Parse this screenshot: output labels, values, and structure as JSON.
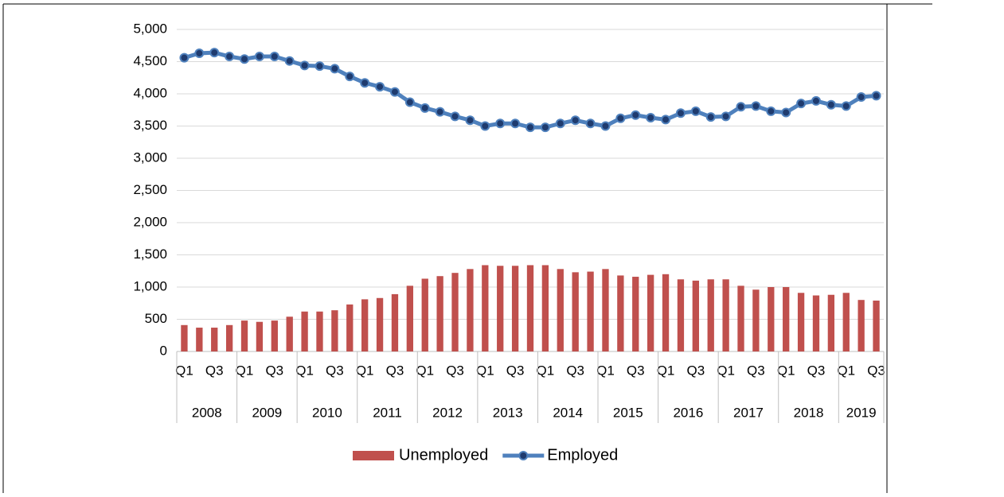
{
  "chart_data": {
    "type": "bar-line",
    "categories": [
      "Q1",
      null,
      "Q3",
      null,
      "Q1",
      null,
      "Q3",
      null,
      "Q1",
      null,
      "Q3",
      null,
      "Q1",
      null,
      "Q3",
      null,
      "Q1",
      null,
      "Q3",
      null,
      "Q1",
      null,
      "Q3",
      null,
      "Q1",
      null,
      "Q3",
      null,
      "Q1",
      null,
      "Q3",
      null,
      "Q1",
      null,
      "Q3",
      null,
      "Q1",
      null,
      "Q3",
      null,
      "Q1",
      null,
      "Q3",
      null,
      "Q1",
      null,
      "Q3"
    ],
    "years": [
      "2008",
      "2009",
      "2010",
      "2011",
      "2012",
      "2013",
      "2014",
      "2015",
      "2016",
      "2017",
      "2018",
      "2019"
    ],
    "series": [
      {
        "name": "Unemployed",
        "type": "bar",
        "color": "#c0504d",
        "values": [
          410,
          370,
          370,
          410,
          480,
          460,
          480,
          540,
          620,
          620,
          640,
          730,
          810,
          830,
          890,
          1020,
          1130,
          1170,
          1220,
          1280,
          1340,
          1330,
          1330,
          1340,
          1340,
          1280,
          1230,
          1240,
          1280,
          1180,
          1160,
          1190,
          1200,
          1120,
          1100,
          1120,
          1120,
          1020,
          960,
          1000,
          1000,
          910,
          870,
          880,
          910,
          800,
          790
        ]
      },
      {
        "name": "Employed",
        "type": "line",
        "color": "#4f81bd",
        "marker_color": "#1f3b6e",
        "values": [
          4560,
          4630,
          4640,
          4580,
          4540,
          4580,
          4580,
          4510,
          4440,
          4430,
          4390,
          4270,
          4170,
          4110,
          4030,
          3870,
          3780,
          3720,
          3650,
          3590,
          3500,
          3540,
          3540,
          3480,
          3480,
          3540,
          3590,
          3540,
          3500,
          3620,
          3670,
          3630,
          3600,
          3700,
          3730,
          3640,
          3650,
          3800,
          3810,
          3730,
          3710,
          3850,
          3890,
          3830,
          3810,
          3950,
          3970
        ]
      }
    ],
    "ylim": [
      0,
      5000
    ],
    "yticks": [
      0,
      500,
      {
        "value": 1000,
        "label": "1,000"
      },
      {
        "value": 1500,
        "label": "1,500"
      },
      {
        "value": 2000,
        "label": "2,000"
      },
      {
        "value": 2500,
        "label": "2,500"
      },
      {
        "value": 3000,
        "label": "3,000"
      },
      {
        "value": 3500,
        "label": "3,500"
      },
      {
        "value": 4000,
        "label": "4,000"
      },
      {
        "value": 4500,
        "label": "4,500"
      },
      {
        "value": 5000,
        "label": "5,000"
      }
    ],
    "grid": true,
    "legend": "bottom"
  }
}
